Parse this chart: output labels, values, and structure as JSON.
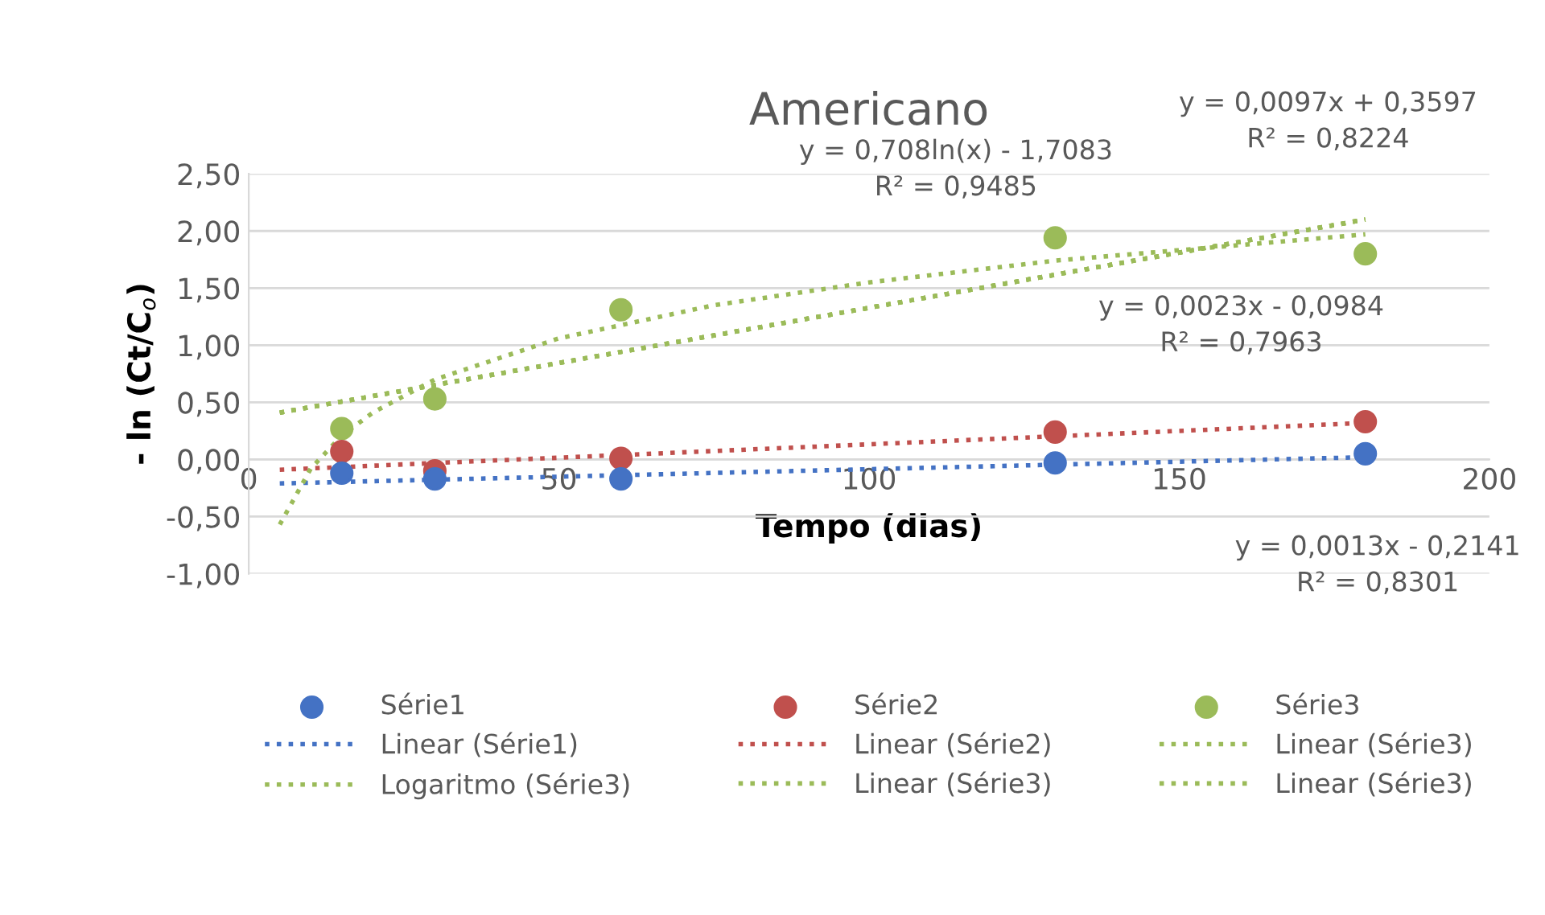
{
  "chart_data": {
    "type": "scatter",
    "title": "Americano",
    "xlabel": "Tempo (dias)",
    "ylabel": "- ln (Ct/C$_{o}$)",
    "xlim": [
      0,
      200
    ],
    "xticks": [
      0,
      50,
      100,
      150,
      200
    ],
    "ylim": [
      -1,
      2.5
    ],
    "yticks": [
      {
        "value": -1,
        "label": "-1,00"
      },
      {
        "value": -0.5,
        "label": "-0,50"
      },
      {
        "value": 0,
        "label": "0,00"
      },
      {
        "value": 0.5,
        "label": "0,50"
      },
      {
        "value": 1,
        "label": "1,00"
      },
      {
        "value": 1.5,
        "label": "1,50"
      },
      {
        "value": 2,
        "label": "2,00"
      },
      {
        "value": 2.5,
        "label": "2,50"
      }
    ],
    "grid": "y",
    "legend": "bottom",
    "marker": "circle",
    "series": [
      {
        "name": "Série1",
        "color": "#4472c4",
        "x": [
          15,
          30,
          60,
          130,
          180
        ],
        "values": [
          -0.12,
          -0.17,
          -0.17,
          -0.03,
          0.05
        ]
      },
      {
        "name": "Série2",
        "color": "#c0504d",
        "x": [
          15,
          30,
          60,
          130,
          180
        ],
        "values": [
          0.07,
          -0.1,
          0.01,
          0.24,
          0.33
        ]
      },
      {
        "name": "Série3",
        "color": "#9bbb59",
        "x": [
          15,
          30,
          60,
          130,
          180
        ],
        "values": [
          0.27,
          0.53,
          1.31,
          1.94,
          1.8
        ]
      },
      {
        "name": "Linear (Série1)",
        "type": "line",
        "line_style": "dotted",
        "marker": "none",
        "color": "#4472c4",
        "x": [
          5,
          180
        ],
        "values": [
          -0.21,
          0.02
        ]
      },
      {
        "name": "Linear (Série2)",
        "type": "line",
        "line_style": "dotted",
        "marker": "none",
        "color": "#c0504d",
        "x": [
          5,
          180
        ],
        "values": [
          -0.09,
          0.32
        ]
      },
      {
        "name": "Linear (Série3)",
        "type": "line",
        "line_style": "dotted",
        "marker": "none",
        "color": "#9bbb59",
        "x": [
          5,
          180
        ],
        "values": [
          0.41,
          2.1
        ]
      },
      {
        "name": "Logaritmo (Série3)",
        "type": "line",
        "line_style": "dotted",
        "marker": "none",
        "color": "#9bbb59",
        "x": [
          5,
          10,
          15,
          20,
          30,
          50,
          75,
          100,
          130,
          180
        ],
        "values": [
          -0.57,
          -0.08,
          0.21,
          0.41,
          0.7,
          1.06,
          1.35,
          1.55,
          1.74,
          1.97
        ]
      },
      {
        "name": "Linear (Série3)",
        "type": "line",
        "line_style": "dotted",
        "marker": "none",
        "color": "#9bbb59",
        "x": [
          5,
          180
        ],
        "values": [
          0.41,
          2.1
        ]
      },
      {
        "name": "Linear (Série3)",
        "type": "line",
        "line_style": "dotted",
        "marker": "none",
        "color": "#9bbb59",
        "x": [
          5,
          180
        ],
        "values": [
          0.41,
          2.1
        ]
      }
    ],
    "annotations": [
      "y = 0,0097x + 0,3597\nR² = 0,8224",
      "y = 0,708ln(x) - 1,7083\nR² = 0,9485",
      "y = 0,0023x - 0,0984\nR² = 0,7963",
      "y = 0,0013x - 0,2141\nR² = 0,8301"
    ]
  }
}
